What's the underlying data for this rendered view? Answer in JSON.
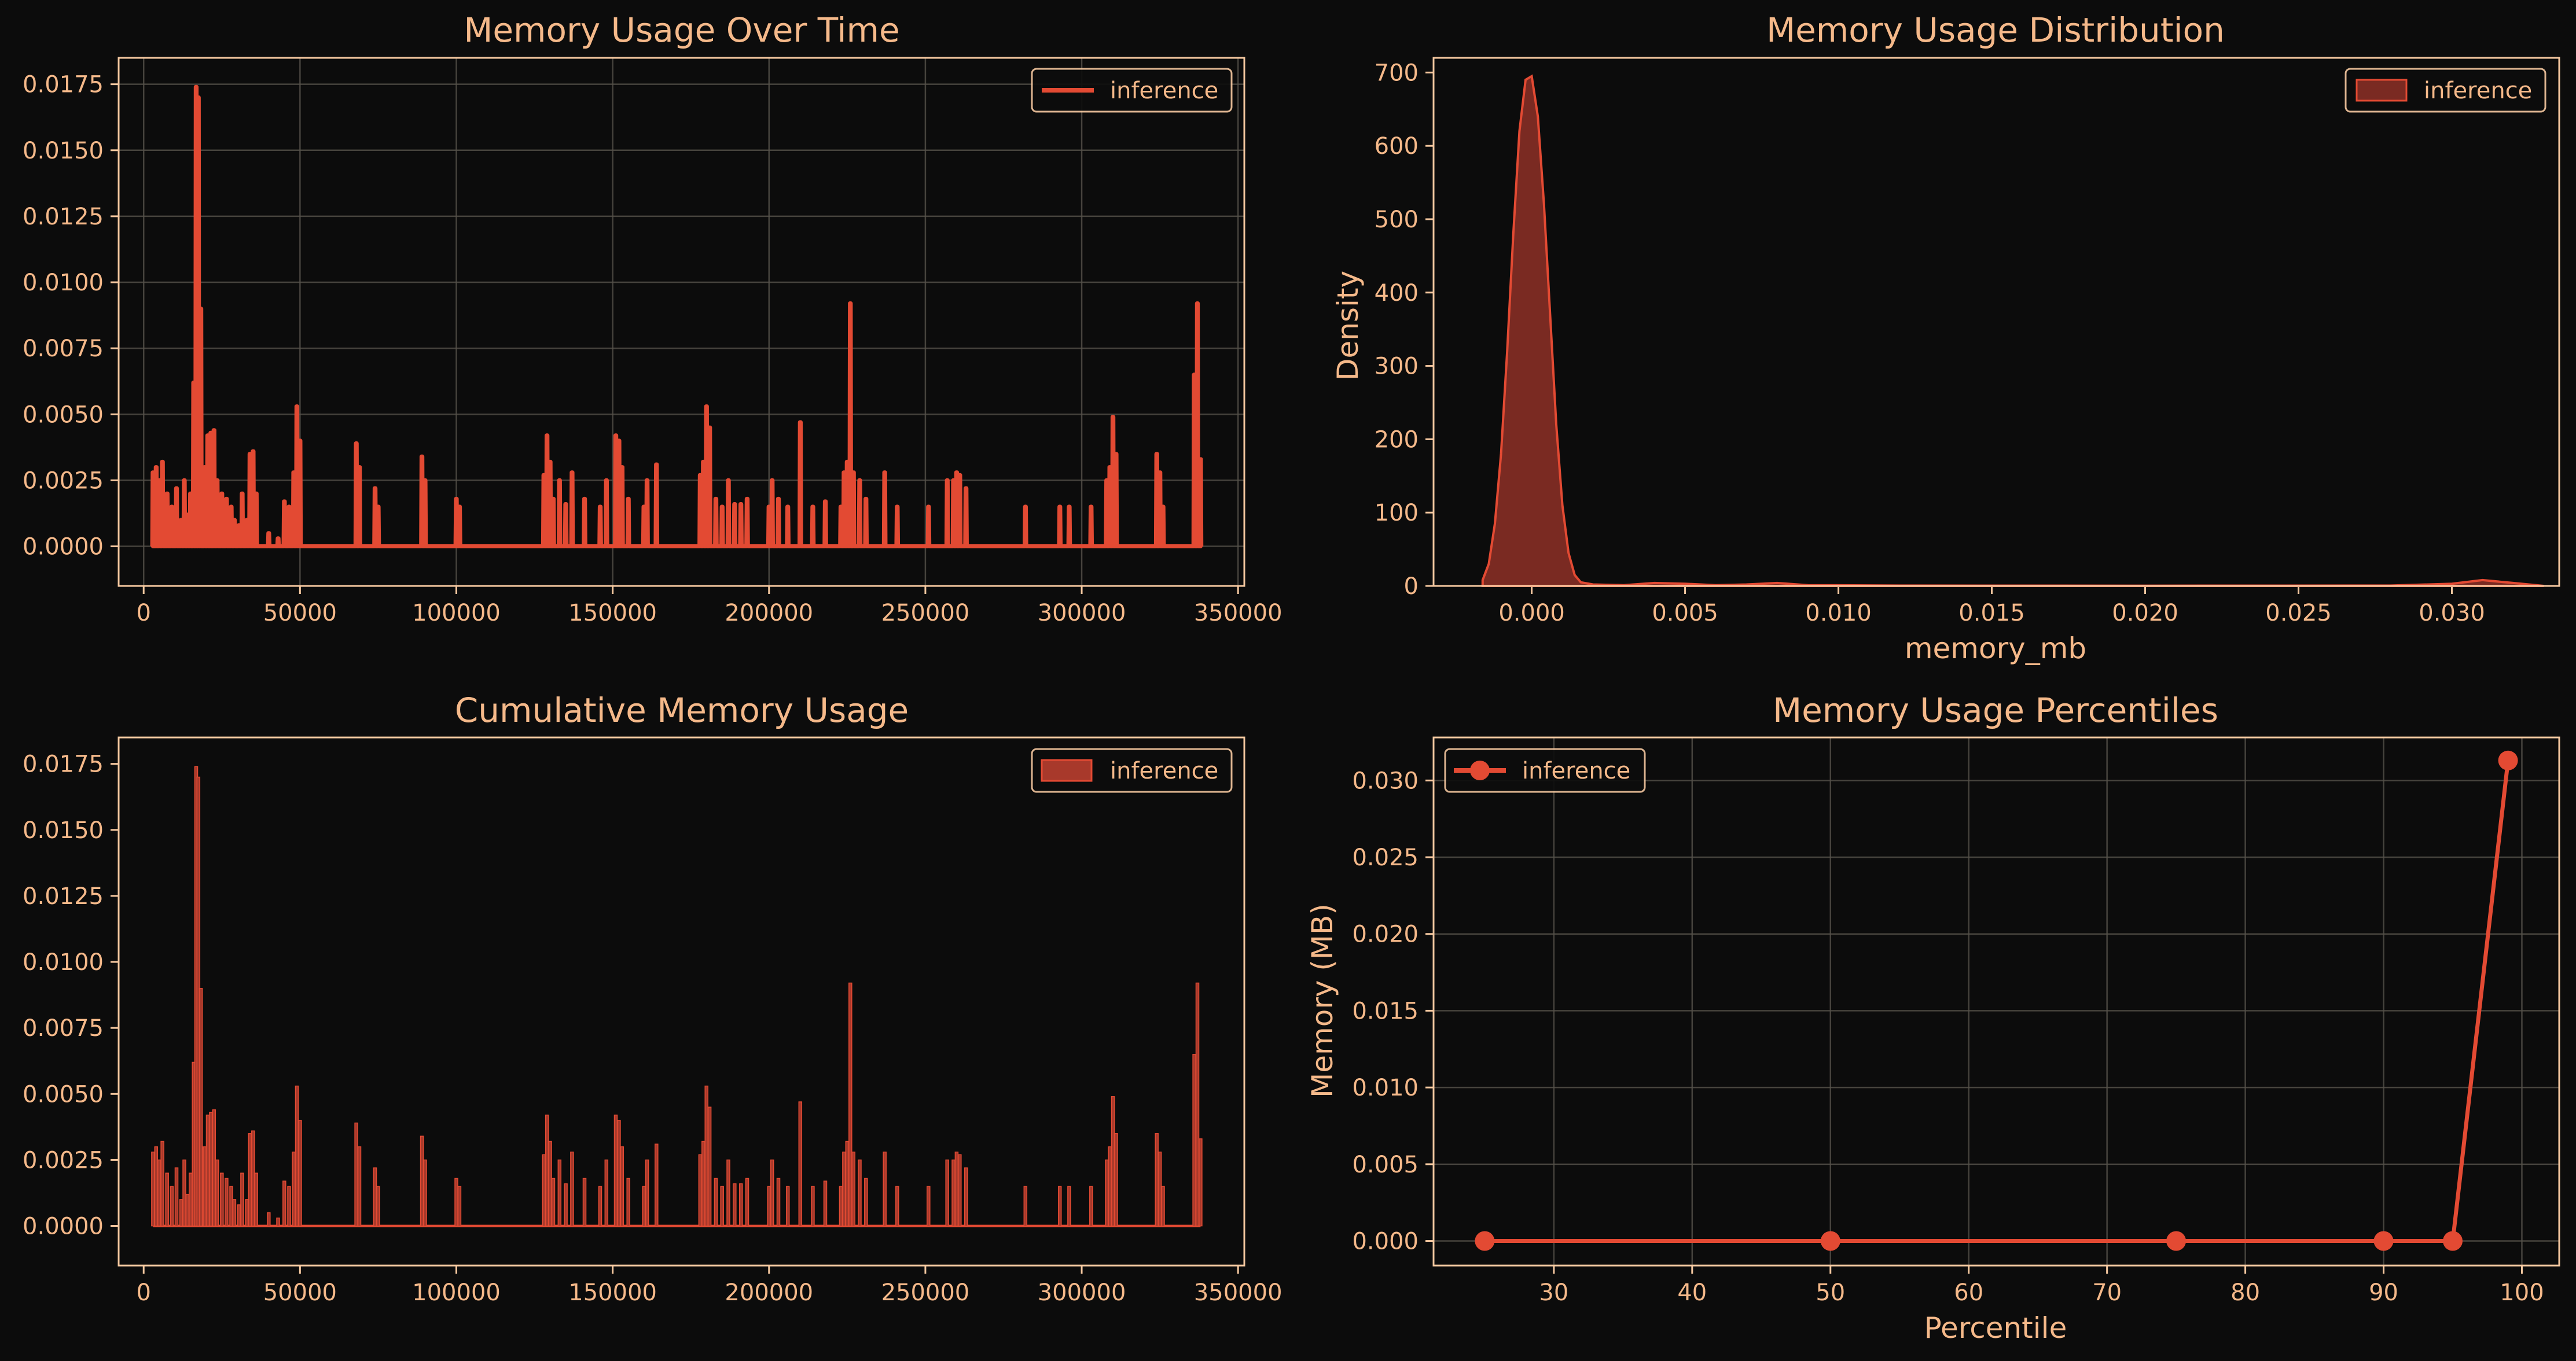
{
  "colors": {
    "background": "#0c0c0c",
    "series": "#e34a33",
    "fill": "#7a2a22",
    "text": "#f5b98a",
    "grid": "#55514a",
    "spine": "#f5c8a0"
  },
  "chart_data": [
    {
      "type": "line",
      "title": "Memory Usage Over Time",
      "xlabel": "",
      "ylabel": "",
      "xlim": [
        -8000,
        352000
      ],
      "ylim": [
        -0.0015,
        0.0185
      ],
      "xticks": [
        0,
        50000,
        100000,
        150000,
        200000,
        250000,
        300000,
        350000
      ],
      "xtick_labels": [
        "0",
        "50000",
        "100000",
        "150000",
        "200000",
        "250000",
        "300000",
        "350000"
      ],
      "yticks": [
        0,
        0.0025,
        0.005,
        0.0075,
        0.01,
        0.0125,
        0.015,
        0.0175
      ],
      "ytick_labels": [
        "0.0000",
        "0.0025",
        "0.0050",
        "0.0075",
        "0.0100",
        "0.0125",
        "0.0150",
        "0.0175"
      ],
      "grid": true,
      "legend": "top-right",
      "series": [
        {
          "name": "inference",
          "spikes": [
            [
              3000,
              0.0028
            ],
            [
              4000,
              0.003
            ],
            [
              5000,
              0.0025
            ],
            [
              6000,
              0.0032
            ],
            [
              7500,
              0.002
            ],
            [
              9000,
              0.0015
            ],
            [
              10500,
              0.0022
            ],
            [
              12000,
              0.001
            ],
            [
              13000,
              0.0025
            ],
            [
              14000,
              0.0012
            ],
            [
              15000,
              0.002
            ],
            [
              16000,
              0.0062
            ],
            [
              16800,
              0.0174
            ],
            [
              17500,
              0.017
            ],
            [
              18300,
              0.009
            ],
            [
              19500,
              0.003
            ],
            [
              20500,
              0.0042
            ],
            [
              21500,
              0.0043
            ],
            [
              22500,
              0.0044
            ],
            [
              23500,
              0.0025
            ],
            [
              25000,
              0.002
            ],
            [
              26500,
              0.0018
            ],
            [
              28000,
              0.0015
            ],
            [
              29000,
              0.001
            ],
            [
              30500,
              0.0008
            ],
            [
              31500,
              0.002
            ],
            [
              33000,
              0.001
            ],
            [
              34000,
              0.0035
            ],
            [
              35000,
              0.0036
            ],
            [
              36000,
              0.002
            ],
            [
              40000,
              0.0005
            ],
            [
              43000,
              0.0003
            ],
            [
              45000,
              0.0017
            ],
            [
              46500,
              0.0015
            ],
            [
              48000,
              0.0028
            ],
            [
              49000,
              0.0053
            ],
            [
              50000,
              0.004
            ],
            [
              68000,
              0.0039
            ],
            [
              69000,
              0.003
            ],
            [
              74000,
              0.0022
            ],
            [
              75000,
              0.0015
            ],
            [
              89000,
              0.0034
            ],
            [
              90000,
              0.0025
            ],
            [
              100000,
              0.0018
            ],
            [
              101000,
              0.0015
            ],
            [
              128000,
              0.0027
            ],
            [
              129000,
              0.0042
            ],
            [
              130000,
              0.0032
            ],
            [
              131000,
              0.0018
            ],
            [
              133000,
              0.0025
            ],
            [
              135000,
              0.0016
            ],
            [
              137000,
              0.0028
            ],
            [
              141000,
              0.0018
            ],
            [
              146000,
              0.0015
            ],
            [
              148000,
              0.0025
            ],
            [
              151000,
              0.0042
            ],
            [
              152000,
              0.004
            ],
            [
              153000,
              0.003
            ],
            [
              155000,
              0.0018
            ],
            [
              160000,
              0.0015
            ],
            [
              161000,
              0.0025
            ],
            [
              164000,
              0.0031
            ],
            [
              178000,
              0.0027
            ],
            [
              179000,
              0.0032
            ],
            [
              180000,
              0.0053
            ],
            [
              181000,
              0.0045
            ],
            [
              183000,
              0.0018
            ],
            [
              185000,
              0.0015
            ],
            [
              187000,
              0.0025
            ],
            [
              189000,
              0.0016
            ],
            [
              191000,
              0.0016
            ],
            [
              193000,
              0.0018
            ],
            [
              200000,
              0.0015
            ],
            [
              201000,
              0.0025
            ],
            [
              203000,
              0.0018
            ],
            [
              206000,
              0.0015
            ],
            [
              210000,
              0.0047
            ],
            [
              214000,
              0.0015
            ],
            [
              218000,
              0.0017
            ],
            [
              223000,
              0.0015
            ],
            [
              224000,
              0.0028
            ],
            [
              225000,
              0.0032
            ],
            [
              226000,
              0.0092
            ],
            [
              227000,
              0.0028
            ],
            [
              229000,
              0.0025
            ],
            [
              231000,
              0.0018
            ],
            [
              237000,
              0.0028
            ],
            [
              241000,
              0.0015
            ],
            [
              251000,
              0.0015
            ],
            [
              257000,
              0.0025
            ],
            [
              259000,
              0.0025
            ],
            [
              260000,
              0.0028
            ],
            [
              261000,
              0.0027
            ],
            [
              263000,
              0.0022
            ],
            [
              282000,
              0.0015
            ],
            [
              293000,
              0.0015
            ],
            [
              296000,
              0.0015
            ],
            [
              303000,
              0.0015
            ],
            [
              308000,
              0.0025
            ],
            [
              309000,
              0.003
            ],
            [
              310000,
              0.0049
            ],
            [
              311000,
              0.0035
            ],
            [
              324000,
              0.0035
            ],
            [
              325000,
              0.0028
            ],
            [
              326000,
              0.0015
            ],
            [
              336000,
              0.0065
            ],
            [
              337000,
              0.0092
            ],
            [
              338000,
              0.0033
            ]
          ],
          "x_range": [
            3000,
            338000
          ]
        }
      ]
    },
    {
      "type": "area",
      "title": "Memory Usage Distribution",
      "xlabel": "memory_mb",
      "ylabel": "Density",
      "xlim": [
        -0.0032,
        0.0335
      ],
      "ylim": [
        0,
        720
      ],
      "xticks": [
        0,
        0.005,
        0.01,
        0.015,
        0.02,
        0.025,
        0.03
      ],
      "xtick_labels": [
        "0.000",
        "0.005",
        "0.010",
        "0.015",
        "0.020",
        "0.025",
        "0.030"
      ],
      "yticks": [
        0,
        100,
        200,
        300,
        400,
        500,
        600,
        700
      ],
      "ytick_labels": [
        "0",
        "100",
        "200",
        "300",
        "400",
        "500",
        "600",
        "700"
      ],
      "grid": false,
      "legend": "top-right",
      "series": [
        {
          "name": "inference",
          "x": [
            -0.0016,
            -0.0014,
            -0.0012,
            -0.001,
            -0.0008,
            -0.0006,
            -0.0004,
            -0.0002,
            0,
            0.0002,
            0.0004,
            0.0006,
            0.0008,
            0.001,
            0.0012,
            0.0014,
            0.0016,
            0.002,
            0.003,
            0.004,
            0.005,
            0.006,
            0.007,
            0.008,
            0.009,
            0.012,
            0.02,
            0.028,
            0.03,
            0.031,
            0.032,
            0.033
          ],
          "y": [
            8,
            30,
            85,
            180,
            320,
            480,
            620,
            690,
            695,
            640,
            520,
            370,
            220,
            110,
            45,
            15,
            5,
            2,
            1,
            4,
            3,
            1,
            2,
            4,
            1,
            0.5,
            0.3,
            0.5,
            3,
            8,
            4,
            0
          ]
        }
      ]
    },
    {
      "type": "bar",
      "title": "Cumulative Memory Usage",
      "xlabel": "",
      "ylabel": "",
      "xlim": [
        -8000,
        352000
      ],
      "ylim": [
        -0.0015,
        0.0185
      ],
      "xticks": [
        0,
        50000,
        100000,
        150000,
        200000,
        250000,
        300000,
        350000
      ],
      "xtick_labels": [
        "0",
        "50000",
        "100000",
        "150000",
        "200000",
        "250000",
        "300000",
        "350000"
      ],
      "yticks": [
        0,
        0.0025,
        0.005,
        0.0075,
        0.01,
        0.0125,
        0.015,
        0.0175
      ],
      "ytick_labels": [
        "0.0000",
        "0.0025",
        "0.0050",
        "0.0075",
        "0.0100",
        "0.0125",
        "0.0150",
        "0.0175"
      ],
      "grid": false,
      "legend": "top-right",
      "series": [
        {
          "name": "inference",
          "same_as": 0
        }
      ]
    },
    {
      "type": "line",
      "title": "Memory Usage Percentiles",
      "xlabel": "Percentile",
      "ylabel": "Memory (MB)",
      "xlim": [
        21.3,
        102.7
      ],
      "ylim": [
        -0.0016,
        0.0328
      ],
      "xticks": [
        30,
        40,
        50,
        60,
        70,
        80,
        90,
        100
      ],
      "xtick_labels": [
        "30",
        "40",
        "50",
        "60",
        "70",
        "80",
        "90",
        "100"
      ],
      "yticks": [
        0,
        0.005,
        0.01,
        0.015,
        0.02,
        0.025,
        0.03
      ],
      "ytick_labels": [
        "0.000",
        "0.005",
        "0.010",
        "0.015",
        "0.020",
        "0.025",
        "0.030"
      ],
      "grid": true,
      "legend": "top-left",
      "series": [
        {
          "name": "inference",
          "x": [
            25,
            50,
            75,
            90,
            95,
            99
          ],
          "y": [
            0,
            0,
            0,
            0,
            0,
            0.0313
          ]
        }
      ]
    }
  ]
}
